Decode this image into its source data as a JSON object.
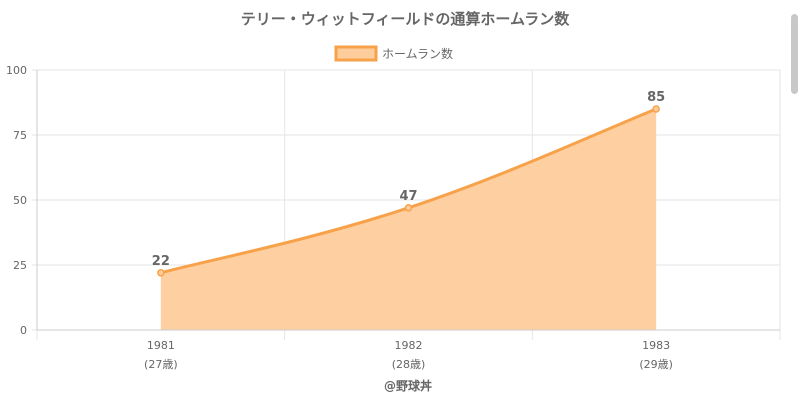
{
  "colors": {
    "line": "#f7a24b",
    "fill": "#fecd9c",
    "grid": "#e6e6e6",
    "axis": "#cccccc",
    "text": "#666666"
  },
  "chart_data": {
    "type": "area",
    "title": "テリー・ウィットフィールドの通算ホームラン数",
    "legend": {
      "position": "top",
      "label": "ホームラン数"
    },
    "categories": [
      "1981",
      "1982",
      "1983"
    ],
    "category_sublabels": [
      "(27歳)",
      "(28歳)",
      "(29歳)"
    ],
    "series": [
      {
        "name": "ホームラン数",
        "values": [
          22,
          47,
          85
        ]
      }
    ],
    "data_labels": [
      "22",
      "47",
      "85"
    ],
    "ylim": [
      0,
      100
    ],
    "yticks": [
      "0",
      "25",
      "50",
      "75",
      "100"
    ],
    "grid": true
  },
  "credit": "@野球丼"
}
